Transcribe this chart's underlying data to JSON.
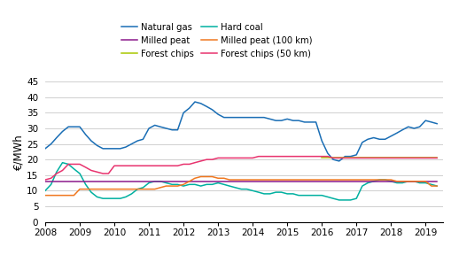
{
  "ylabel": "€/MWh",
  "xlim": [
    2008,
    2019.5
  ],
  "ylim": [
    0,
    45
  ],
  "yticks": [
    0,
    5,
    10,
    15,
    20,
    25,
    30,
    35,
    40,
    45
  ],
  "xticks": [
    2008,
    2009,
    2010,
    2011,
    2012,
    2013,
    2014,
    2015,
    2016,
    2017,
    2018,
    2019
  ],
  "series": {
    "Natural gas": {
      "color": "#1a6eb5",
      "x": [
        2008.0,
        2008.17,
        2008.33,
        2008.5,
        2008.67,
        2008.83,
        2009.0,
        2009.17,
        2009.33,
        2009.5,
        2009.67,
        2009.83,
        2010.0,
        2010.17,
        2010.33,
        2010.5,
        2010.67,
        2010.83,
        2011.0,
        2011.17,
        2011.33,
        2011.5,
        2011.67,
        2011.83,
        2012.0,
        2012.17,
        2012.33,
        2012.5,
        2012.67,
        2012.83,
        2013.0,
        2013.17,
        2013.33,
        2013.5,
        2013.67,
        2013.83,
        2014.0,
        2014.17,
        2014.33,
        2014.5,
        2014.67,
        2014.83,
        2015.0,
        2015.17,
        2015.33,
        2015.5,
        2015.67,
        2015.83,
        2016.0,
        2016.17,
        2016.33,
        2016.5,
        2016.67,
        2016.83,
        2017.0,
        2017.17,
        2017.33,
        2017.5,
        2017.67,
        2017.83,
        2018.0,
        2018.17,
        2018.33,
        2018.5,
        2018.67,
        2018.83,
        2019.0,
        2019.17,
        2019.33
      ],
      "y": [
        23.5,
        25.0,
        27.0,
        29.0,
        30.5,
        30.5,
        30.5,
        28.0,
        26.0,
        24.5,
        23.5,
        23.5,
        23.5,
        23.5,
        24.0,
        25.0,
        26.0,
        26.5,
        30.0,
        31.0,
        30.5,
        30.0,
        29.5,
        29.5,
        35.0,
        36.5,
        38.5,
        38.0,
        37.0,
        36.0,
        34.5,
        33.5,
        33.5,
        33.5,
        33.5,
        33.5,
        33.5,
        33.5,
        33.5,
        33.0,
        32.5,
        32.5,
        33.0,
        32.5,
        32.5,
        32.0,
        32.0,
        32.0,
        26.0,
        22.0,
        20.0,
        19.5,
        21.0,
        21.0,
        21.5,
        25.5,
        26.5,
        27.0,
        26.5,
        26.5,
        27.5,
        28.5,
        29.5,
        30.5,
        30.0,
        30.5,
        32.5,
        32.0,
        31.5
      ]
    },
    "Hard coal": {
      "color": "#00b0a0",
      "x": [
        2008.0,
        2008.17,
        2008.33,
        2008.5,
        2008.67,
        2008.83,
        2009.0,
        2009.17,
        2009.33,
        2009.5,
        2009.67,
        2009.83,
        2010.0,
        2010.17,
        2010.33,
        2010.5,
        2010.67,
        2010.83,
        2011.0,
        2011.17,
        2011.33,
        2011.5,
        2011.67,
        2011.83,
        2012.0,
        2012.17,
        2012.33,
        2012.5,
        2012.67,
        2012.83,
        2013.0,
        2013.17,
        2013.33,
        2013.5,
        2013.67,
        2013.83,
        2014.0,
        2014.17,
        2014.33,
        2014.5,
        2014.67,
        2014.83,
        2015.0,
        2015.17,
        2015.33,
        2015.5,
        2015.67,
        2015.83,
        2016.0,
        2016.17,
        2016.33,
        2016.5,
        2016.67,
        2016.83,
        2017.0,
        2017.17,
        2017.33,
        2017.5,
        2017.67,
        2017.83,
        2018.0,
        2018.17,
        2018.33,
        2018.5,
        2018.67,
        2018.83,
        2019.0,
        2019.17,
        2019.33
      ],
      "y": [
        10.0,
        12.0,
        16.0,
        19.0,
        18.5,
        17.0,
        15.5,
        12.0,
        9.5,
        8.0,
        7.5,
        7.5,
        7.5,
        7.5,
        8.0,
        9.0,
        10.5,
        11.0,
        12.5,
        13.0,
        13.0,
        12.5,
        12.0,
        12.0,
        11.5,
        12.0,
        12.0,
        11.5,
        12.0,
        12.0,
        12.5,
        12.0,
        11.5,
        11.0,
        10.5,
        10.5,
        10.0,
        9.5,
        9.0,
        9.0,
        9.5,
        9.5,
        9.0,
        9.0,
        8.5,
        8.5,
        8.5,
        8.5,
        8.5,
        8.0,
        7.5,
        7.0,
        7.0,
        7.0,
        7.5,
        11.5,
        12.5,
        13.0,
        13.5,
        13.5,
        13.0,
        12.5,
        12.5,
        13.0,
        13.0,
        12.5,
        12.5,
        12.0,
        11.5
      ]
    },
    "Milled peat": {
      "color": "#8b1a8b",
      "x": [
        2008.0,
        2008.5,
        2009.0,
        2009.5,
        2010.0,
        2010.5,
        2011.0,
        2011.5,
        2012.0,
        2012.5,
        2013.0,
        2013.5,
        2014.0,
        2014.5,
        2015.0,
        2015.5,
        2016.0,
        2016.5,
        2017.0,
        2017.5,
        2018.0,
        2018.5,
        2019.0,
        2019.33
      ],
      "y": [
        13.0,
        13.0,
        13.0,
        13.0,
        13.0,
        13.0,
        13.0,
        13.0,
        13.0,
        13.0,
        13.0,
        13.0,
        13.0,
        13.0,
        13.0,
        13.0,
        13.0,
        13.0,
        13.0,
        13.0,
        13.0,
        13.0,
        13.0,
        13.0
      ]
    },
    "Milled peat (100 km)": {
      "color": "#f07820",
      "x": [
        2008.0,
        2008.17,
        2008.33,
        2008.5,
        2008.67,
        2008.83,
        2009.0,
        2009.17,
        2009.33,
        2009.5,
        2009.67,
        2009.83,
        2010.0,
        2010.17,
        2010.33,
        2010.5,
        2010.67,
        2010.83,
        2011.0,
        2011.17,
        2011.33,
        2011.5,
        2011.67,
        2011.83,
        2012.0,
        2012.17,
        2012.33,
        2012.5,
        2012.67,
        2012.83,
        2013.0,
        2013.17,
        2013.33,
        2013.5,
        2013.67,
        2013.83,
        2014.0,
        2014.17,
        2014.33,
        2014.5,
        2014.67,
        2014.83,
        2015.0,
        2015.17,
        2015.33,
        2015.5,
        2015.67,
        2015.83,
        2016.0,
        2016.17,
        2016.33,
        2016.5,
        2016.67,
        2016.83,
        2017.0,
        2017.17,
        2017.33,
        2017.5,
        2017.67,
        2017.83,
        2018.0,
        2018.17,
        2018.33,
        2018.5,
        2018.67,
        2018.83,
        2019.0,
        2019.17,
        2019.33
      ],
      "y": [
        8.5,
        8.5,
        8.5,
        8.5,
        8.5,
        8.5,
        10.5,
        10.5,
        10.5,
        10.5,
        10.5,
        10.5,
        10.5,
        10.5,
        10.5,
        10.5,
        10.5,
        10.5,
        10.5,
        10.5,
        11.0,
        11.5,
        11.5,
        11.5,
        12.0,
        13.0,
        14.0,
        14.5,
        14.5,
        14.5,
        14.0,
        14.0,
        13.5,
        13.5,
        13.5,
        13.5,
        13.5,
        13.5,
        13.5,
        13.5,
        13.5,
        13.5,
        13.5,
        13.5,
        13.5,
        13.5,
        13.5,
        13.5,
        13.5,
        13.5,
        13.5,
        13.5,
        13.5,
        13.5,
        13.5,
        13.5,
        13.5,
        13.5,
        13.5,
        13.5,
        13.5,
        13.0,
        13.0,
        13.0,
        13.0,
        13.0,
        13.0,
        11.5,
        11.5
      ]
    },
    "Forest chips": {
      "color": "#a8c800",
      "x": [
        2016.0,
        2016.5,
        2017.0,
        2017.5,
        2018.0,
        2018.5,
        2019.0,
        2019.33
      ],
      "y": [
        20.5,
        20.5,
        20.5,
        20.5,
        20.5,
        20.5,
        20.5,
        20.5
      ]
    },
    "Forest chips (50 km)": {
      "color": "#e8336e",
      "x": [
        2008.0,
        2008.17,
        2008.33,
        2008.5,
        2008.67,
        2008.83,
        2009.0,
        2009.17,
        2009.33,
        2009.5,
        2009.67,
        2009.83,
        2010.0,
        2010.17,
        2010.33,
        2010.5,
        2010.67,
        2010.83,
        2011.0,
        2011.17,
        2011.33,
        2011.5,
        2011.67,
        2011.83,
        2012.0,
        2012.17,
        2012.33,
        2012.5,
        2012.67,
        2012.83,
        2013.0,
        2013.17,
        2013.33,
        2013.5,
        2013.67,
        2013.83,
        2014.0,
        2014.17,
        2014.33,
        2014.5,
        2014.67,
        2014.83,
        2015.0,
        2015.17,
        2015.33,
        2015.5,
        2015.67,
        2015.83,
        2016.0,
        2016.17,
        2016.33,
        2016.5,
        2016.67,
        2016.83,
        2017.0,
        2017.17,
        2017.33,
        2017.5,
        2017.67,
        2017.83,
        2018.0,
        2018.17,
        2018.33,
        2018.5,
        2018.67,
        2018.83,
        2019.0,
        2019.17,
        2019.33
      ],
      "y": [
        13.5,
        14.0,
        15.5,
        16.5,
        18.5,
        18.5,
        18.5,
        17.5,
        16.5,
        16.0,
        15.5,
        15.5,
        18.0,
        18.0,
        18.0,
        18.0,
        18.0,
        18.0,
        18.0,
        18.0,
        18.0,
        18.0,
        18.0,
        18.0,
        18.5,
        18.5,
        19.0,
        19.5,
        20.0,
        20.0,
        20.5,
        20.5,
        20.5,
        20.5,
        20.5,
        20.5,
        20.5,
        21.0,
        21.0,
        21.0,
        21.0,
        21.0,
        21.0,
        21.0,
        21.0,
        21.0,
        21.0,
        21.0,
        21.0,
        21.0,
        20.5,
        20.5,
        20.5,
        20.5,
        20.5,
        20.5,
        20.5,
        20.5,
        20.5,
        20.5,
        20.5,
        20.5,
        20.5,
        20.5,
        20.5,
        20.5,
        20.5,
        20.5,
        20.5
      ]
    }
  },
  "legend_order": [
    "Natural gas",
    "Hard coal",
    "Milled peat",
    "Milled peat (100 km)",
    "Forest chips",
    "Forest chips (50 km)"
  ],
  "background_color": "#ffffff",
  "grid_color": "#c8c8c8"
}
